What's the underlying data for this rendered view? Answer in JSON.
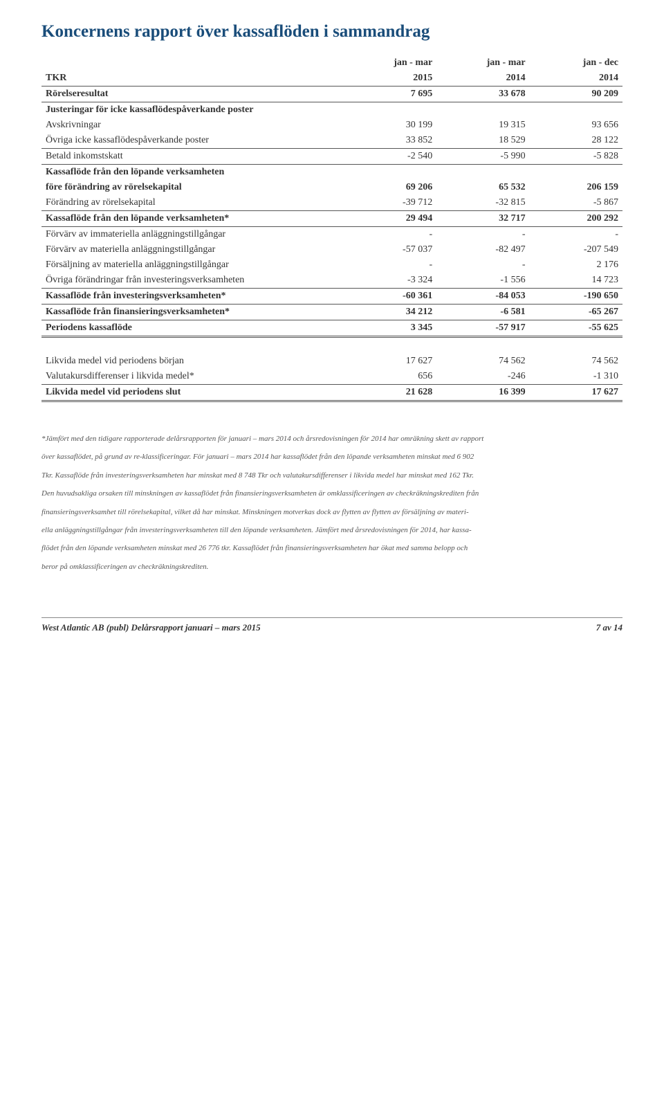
{
  "title": "Koncernens rapport över kassaflöden i sammandrag",
  "header": {
    "row_label": "TKR",
    "cols_top": [
      "jan - mar",
      "jan - mar",
      "jan - dec"
    ],
    "cols_bot": [
      "2015",
      "2014",
      "2014"
    ]
  },
  "rows": [
    {
      "label": "Rörelseresultat",
      "v": [
        "7 695",
        "33 678",
        "90 209"
      ],
      "bold": true,
      "line": "thin"
    },
    {
      "label": "Justeringar för icke kassaflödespåverkande poster",
      "v": [
        "",
        "",
        ""
      ],
      "bold": true,
      "pad": true
    },
    {
      "label": "Avskrivningar",
      "v": [
        "30 199",
        "19 315",
        "93 656"
      ]
    },
    {
      "label": "Övriga icke kassaflödespåverkande poster",
      "v": [
        "33 852",
        "18 529",
        "28 122"
      ],
      "line": "thin"
    },
    {
      "label": "Betald inkomstskatt",
      "v": [
        "-2 540",
        "-5 990",
        "-5 828"
      ],
      "line": "thin",
      "pad": true
    },
    {
      "label": "Kassaflöde från den löpande verksamheten",
      "v": [
        "",
        "",
        ""
      ],
      "bold": true,
      "pad": true
    },
    {
      "label": "före förändring av rörelsekapital",
      "v": [
        "69 206",
        "65 532",
        "206 159"
      ],
      "bold": true
    },
    {
      "label": "Förändring av rörelsekapital",
      "v": [
        "-39 712",
        "-32 815",
        "-5 867"
      ],
      "line": "thin"
    },
    {
      "label": "Kassaflöde från den löpande verksamheten*",
      "v": [
        "29 494",
        "32 717",
        "200 292"
      ],
      "bold": true,
      "line": "thin",
      "pad": true
    },
    {
      "label": "Förvärv av immateriella anläggningstillgångar",
      "v": [
        "-",
        "-",
        "-"
      ],
      "pad": true
    },
    {
      "label": "Förvärv av materiella anläggningstillgångar",
      "v": [
        "-57 037",
        "-82 497",
        "-207 549"
      ]
    },
    {
      "label": "Försäljning av materiella anläggningstillgångar",
      "v": [
        "-",
        "-",
        "2 176"
      ]
    },
    {
      "label": "Övriga förändringar från investeringsverksamheten",
      "v": [
        "-3 324",
        "-1 556",
        "14 723"
      ],
      "line": "thin"
    },
    {
      "label": "Kassaflöde från investeringsverksamheten*",
      "v": [
        "-60 361",
        "-84 053",
        "-190 650"
      ],
      "bold": true,
      "line": "thin",
      "pad": true
    },
    {
      "label": "Kassaflöde från finansieringsverksamheten*",
      "v": [
        "34 212",
        "-6 581",
        "-65 267"
      ],
      "bold": true,
      "line": "thin",
      "pad": true
    },
    {
      "label": "Periodens kassaflöde",
      "v": [
        "3 345",
        "-57 917",
        "-55 625"
      ],
      "bold": true,
      "line": "double"
    },
    {
      "label": "Likvida medel vid periodens början",
      "v": [
        "17 627",
        "74 562",
        "74 562"
      ],
      "pad": true,
      "bigpad": true
    },
    {
      "label": "Valutakursdifferenser i likvida medel*",
      "v": [
        "656",
        "-246",
        "-1 310"
      ],
      "line": "thin"
    },
    {
      "label": "Likvida medel vid periodens slut",
      "v": [
        "21 628",
        "16 399",
        "17 627"
      ],
      "bold": true,
      "line": "double",
      "pad": true
    }
  ],
  "notes": [
    "*Jämfört med den tidigare rapporterade delårsrapporten för januari – mars 2014 och årsredovisningen för 2014 har omräkning skett av rapport",
    "över kassaflödet, på grund av re-klassificeringar. För januari – mars 2014 har kassaflödet från den löpande verksamheten minskat med 6 902",
    "Tkr. Kassaflöde från investeringsverksamheten har minskat med 8 748 Tkr och valutakursdifferenser i likvida medel har minskat med 162 Tkr.",
    "Den huvudsakliga orsaken till minskningen av kassaflödet från finansieringsverksamheten är omklassificeringen av checkräkningskrediten från",
    "finansieringsverksamhet till rörelsekapital, vilket då har minskat. Minskningen motverkas dock av flytten av flytten av försäljning av materi-",
    "ella anläggningstillgångar från investeringsverksamheten till den löpande verksamheten. Jämfört med årsredovisningen för 2014, har kassa-",
    "flödet från den löpande verksamheten minskat med 26 776 tkr. Kassaflödet från finansieringsverksamheten har ökat med samma belopp och",
    "beror på omklassificeringen av checkräkningskrediten."
  ],
  "footer": {
    "left": "West Atlantic AB (publ) Delårsrapport januari – mars 2015",
    "right": "7 av 14"
  }
}
